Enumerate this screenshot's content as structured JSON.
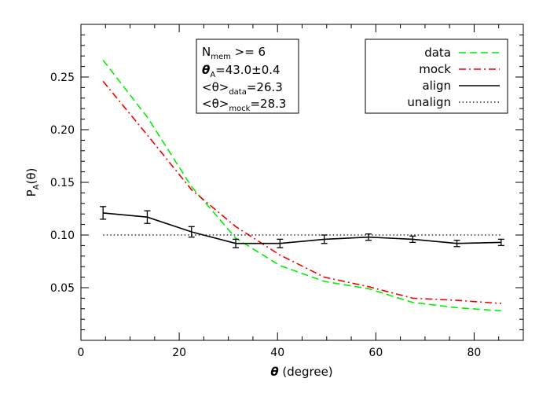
{
  "chart_data": {
    "type": "line",
    "xlabel": {
      "symbol": "θ",
      "text": " (degree)"
    },
    "ylabel": {
      "main": "P",
      "sub": "A",
      "rest": "(θ)"
    },
    "xlim": [
      0,
      90
    ],
    "ylim": [
      0,
      0.3
    ],
    "xticks": [
      0,
      20,
      40,
      60,
      80
    ],
    "xtick_labels": [
      "0",
      "20",
      "40",
      "60",
      "80"
    ],
    "yticks": [
      0.05,
      0.1,
      0.15,
      0.2,
      0.25
    ],
    "ytick_labels": [
      "0.05",
      "0.10",
      "0.15",
      "0.20",
      "0.25"
    ],
    "grid": false,
    "legend_position": "top-right",
    "annotation": {
      "line1": {
        "main": "N",
        "sub": "mem",
        "rest": " >=  6"
      },
      "line2": {
        "main": "θ",
        "sub": "A",
        "rest": "=43.0±0.4"
      },
      "line3": {
        "main": "<θ>",
        "sub": "data",
        "rest": "=26.3"
      },
      "line4": {
        "main": "<θ>",
        "sub": "mock",
        "rest": "=28.3"
      }
    },
    "x": [
      4.5,
      13.5,
      22.5,
      31.5,
      40.5,
      49.5,
      58.5,
      67.5,
      76.5,
      85.5
    ],
    "series": [
      {
        "name": "data",
        "color": "#00ee00",
        "dash": "dashed",
        "values": [
          0.266,
          0.212,
          0.146,
          0.097,
          0.071,
          0.056,
          0.049,
          0.036,
          0.031,
          0.028
        ]
      },
      {
        "name": "mock",
        "color": "#ee0000",
        "dash": "dashdot",
        "values": [
          0.246,
          0.195,
          0.143,
          0.108,
          0.081,
          0.06,
          0.051,
          0.04,
          0.038,
          0.035
        ]
      },
      {
        "name": "align",
        "color": "#000000",
        "dash": "solid",
        "values": [
          0.121,
          0.117,
          0.103,
          0.092,
          0.092,
          0.096,
          0.098,
          0.096,
          0.092,
          0.093
        ],
        "errors": [
          0.006,
          0.006,
          0.005,
          0.004,
          0.004,
          0.004,
          0.003,
          0.003,
          0.003,
          0.003
        ]
      },
      {
        "name": "unalign",
        "color": "#000000",
        "dash": "dotted",
        "values": [
          0.1,
          0.1,
          0.1,
          0.1,
          0.1,
          0.1,
          0.1,
          0.1,
          0.1,
          0.1
        ]
      }
    ]
  }
}
